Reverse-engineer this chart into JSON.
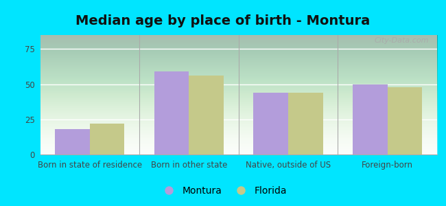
{
  "title": "Median age by place of birth - Montura",
  "categories": [
    "Born in state of residence",
    "Born in other state",
    "Native, outside of US",
    "Foreign-born"
  ],
  "montura_values": [
    18,
    59,
    44,
    50
  ],
  "florida_values": [
    22,
    56,
    44,
    48
  ],
  "montura_color": "#b39ddb",
  "florida_color": "#c5c98a",
  "ylim": [
    0,
    85
  ],
  "yticks": [
    0,
    25,
    50,
    75
  ],
  "bar_width": 0.35,
  "outer_background": "#00e5ff",
  "legend_montura": "Montura",
  "legend_florida": "Florida",
  "title_fontsize": 14,
  "tick_fontsize": 8.5,
  "legend_fontsize": 10
}
